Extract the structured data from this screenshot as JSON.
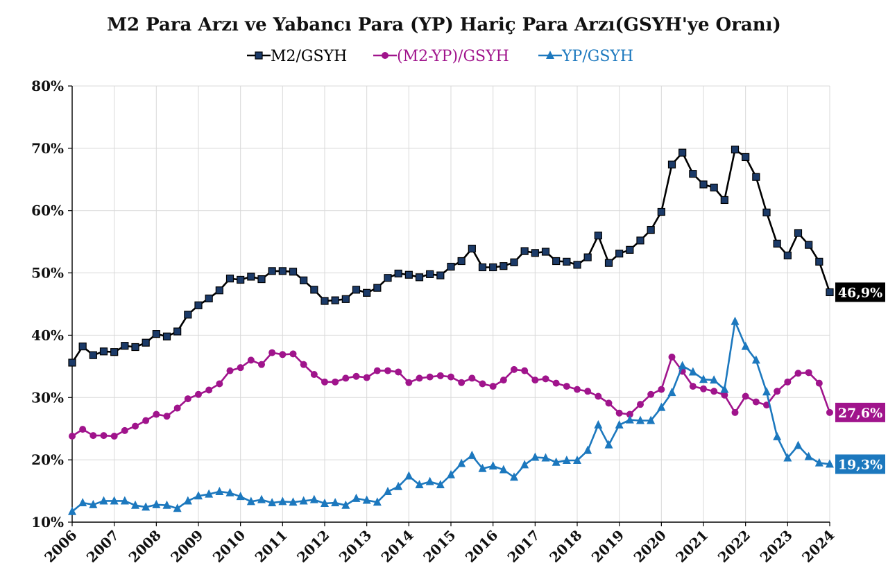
{
  "chart_data": {
    "type": "line",
    "title": "M2 Para Arzı ve Yabancı Para (YP) Hariç Para Arzı(GSYH'ye Oranı)",
    "xlabel": "",
    "ylabel": "",
    "x_range": [
      2006.0,
      2024.0
    ],
    "ylim": [
      10,
      80
    ],
    "y_ticks": [
      "10%",
      "20%",
      "30%",
      "40%",
      "50%",
      "60%",
      "70%",
      "80%"
    ],
    "x_ticks": [
      "2006",
      "2007",
      "2008",
      "2009",
      "2010",
      "2011",
      "2012",
      "2013",
      "2014",
      "2015",
      "2016",
      "2017",
      "2018",
      "2019",
      "2020",
      "2021",
      "2022",
      "2023",
      "2024"
    ],
    "grid": true,
    "legend": "top-center",
    "x": [
      2006.0,
      2006.25,
      2006.5,
      2006.75,
      2007.0,
      2007.25,
      2007.5,
      2007.75,
      2008.0,
      2008.25,
      2008.5,
      2008.75,
      2009.0,
      2009.25,
      2009.5,
      2009.75,
      2010.0,
      2010.25,
      2010.5,
      2010.75,
      2011.0,
      2011.25,
      2011.5,
      2011.75,
      2012.0,
      2012.25,
      2012.5,
      2012.75,
      2013.0,
      2013.25,
      2013.5,
      2013.75,
      2014.0,
      2014.25,
      2014.5,
      2014.75,
      2015.0,
      2015.25,
      2015.5,
      2015.75,
      2016.0,
      2016.25,
      2016.5,
      2016.75,
      2017.0,
      2017.25,
      2017.5,
      2017.75,
      2018.0,
      2018.25,
      2018.5,
      2018.75,
      2019.0,
      2019.25,
      2019.5,
      2019.75,
      2020.0,
      2020.25,
      2020.5,
      2020.75,
      2021.0,
      2021.25,
      2021.5,
      2021.75,
      2022.0,
      2022.25,
      2022.5,
      2022.75,
      2023.0,
      2023.25,
      2023.5,
      2023.75,
      2024.0
    ],
    "series": [
      {
        "name": "M2/GSYH",
        "color": "#000000",
        "marker_fill": "#1b3a68",
        "marker": "square",
        "end_label": "46,9%",
        "values": [
          35.6,
          38.2,
          36.8,
          37.4,
          37.3,
          38.3,
          38.1,
          38.8,
          40.2,
          39.8,
          40.6,
          43.3,
          44.8,
          45.9,
          47.2,
          49.1,
          48.9,
          49.4,
          49.0,
          50.3,
          50.3,
          50.2,
          48.8,
          47.3,
          45.5,
          45.6,
          45.8,
          47.3,
          46.8,
          47.6,
          49.2,
          49.9,
          49.7,
          49.3,
          49.8,
          49.6,
          51.0,
          51.9,
          53.9,
          50.9,
          50.9,
          51.1,
          51.7,
          53.5,
          53.2,
          53.4,
          51.9,
          51.8,
          51.3,
          52.5,
          56.0,
          51.6,
          53.1,
          53.7,
          55.2,
          56.9,
          59.8,
          67.4,
          69.3,
          65.9,
          64.2,
          63.7,
          61.7,
          69.8,
          68.6,
          65.4,
          59.7,
          54.7,
          52.8,
          56.4,
          54.5,
          51.8,
          46.9
        ]
      },
      {
        "name": "(M2-YP)/GSYH",
        "color": "#a0148c",
        "marker_fill": "#a0148c",
        "marker": "circle",
        "end_label": "27,6%",
        "values": [
          23.8,
          24.9,
          23.9,
          23.9,
          23.8,
          24.7,
          25.4,
          26.3,
          27.3,
          27.0,
          28.3,
          29.8,
          30.5,
          31.2,
          32.2,
          34.3,
          34.8,
          36.0,
          35.3,
          37.2,
          36.9,
          37.0,
          35.3,
          33.7,
          32.5,
          32.5,
          33.1,
          33.4,
          33.2,
          34.3,
          34.3,
          34.1,
          32.4,
          33.1,
          33.3,
          33.5,
          33.3,
          32.4,
          33.1,
          32.2,
          31.8,
          32.8,
          34.5,
          34.3,
          32.8,
          33.0,
          32.3,
          31.8,
          31.3,
          31.0,
          30.2,
          29.1,
          27.5,
          27.3,
          28.9,
          30.5,
          31.3,
          36.5,
          34.2,
          31.8,
          31.4,
          31.0,
          30.4,
          27.6,
          30.2,
          29.3,
          28.8,
          31.0,
          32.5,
          33.9,
          34.0,
          32.3,
          27.6
        ]
      },
      {
        "name": "YP/GSYH",
        "color": "#1c78be",
        "marker_fill": "#1c78be",
        "marker": "triangle",
        "end_label": "19,3%",
        "values": [
          11.7,
          13.1,
          12.8,
          13.4,
          13.4,
          13.4,
          12.7,
          12.4,
          12.8,
          12.7,
          12.2,
          13.4,
          14.2,
          14.5,
          14.9,
          14.7,
          14.1,
          13.3,
          13.6,
          13.1,
          13.3,
          13.2,
          13.4,
          13.6,
          13.0,
          13.1,
          12.7,
          13.8,
          13.5,
          13.2,
          14.9,
          15.7,
          17.4,
          16.0,
          16.5,
          16.0,
          17.6,
          19.4,
          20.7,
          18.6,
          19.0,
          18.4,
          17.2,
          19.2,
          20.4,
          20.3,
          19.6,
          19.9,
          19.9,
          21.5,
          25.6,
          22.4,
          25.6,
          26.4,
          26.3,
          26.3,
          28.4,
          30.8,
          35.1,
          34.1,
          32.9,
          32.8,
          31.3,
          42.2,
          38.2,
          36.0,
          30.9,
          23.7,
          20.3,
          22.3,
          20.5,
          19.5,
          19.3
        ]
      }
    ]
  }
}
